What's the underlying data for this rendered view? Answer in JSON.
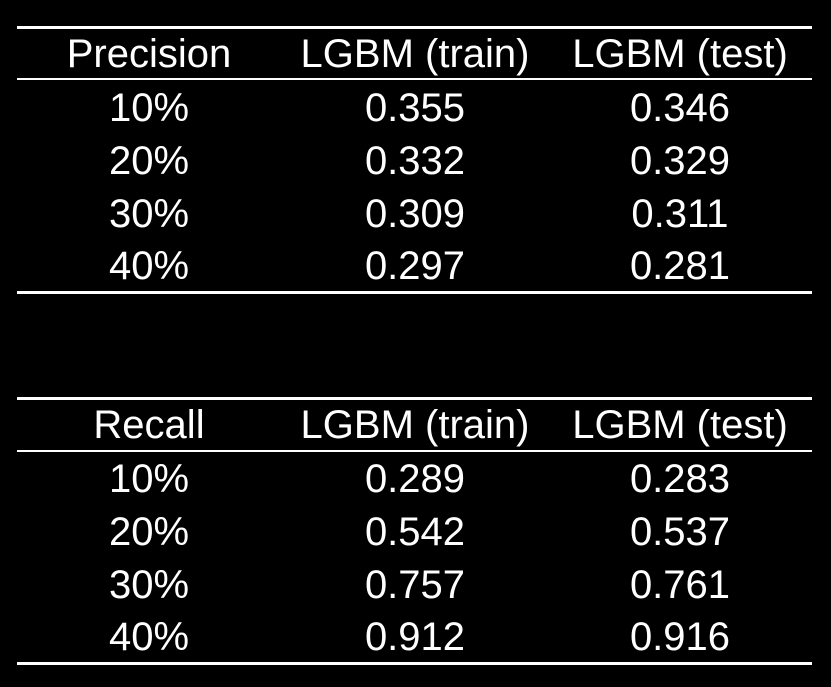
{
  "tables": [
    {
      "headers": [
        "Precision",
        "LGBM (train)",
        "LGBM (test)"
      ],
      "rows": [
        [
          "10%",
          "0.355",
          "0.346"
        ],
        [
          "20%",
          "0.332",
          "0.329"
        ],
        [
          "30%",
          "0.309",
          "0.311"
        ],
        [
          "40%",
          "0.297",
          "0.281"
        ]
      ]
    },
    {
      "headers": [
        "Recall",
        "LGBM (train)",
        "LGBM (test)"
      ],
      "rows": [
        [
          "10%",
          "0.289",
          "0.283"
        ],
        [
          "20%",
          "0.542",
          "0.537"
        ],
        [
          "30%",
          "0.757",
          "0.761"
        ],
        [
          "40%",
          "0.912",
          "0.916"
        ]
      ]
    }
  ],
  "colors": {
    "background": "#000000",
    "text": "#ffffff"
  }
}
